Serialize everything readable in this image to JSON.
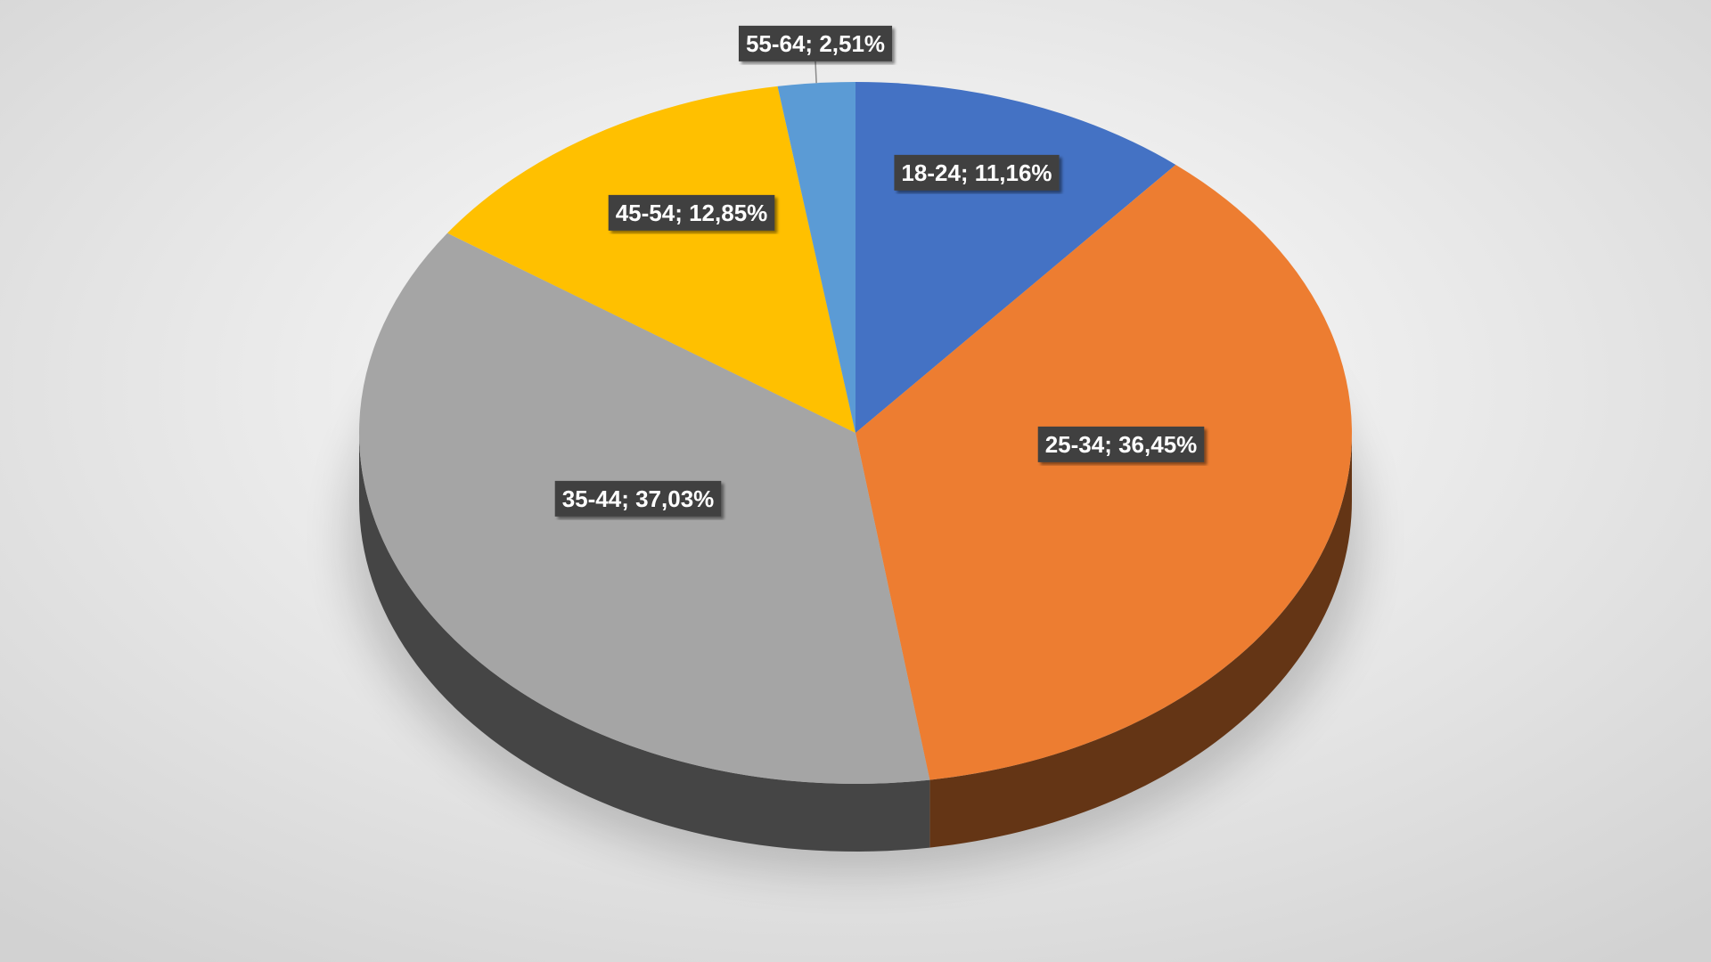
{
  "chart_data": {
    "type": "pie3d",
    "values": [
      11.16,
      36.45,
      37.03,
      12.85,
      2.51
    ],
    "value_labels": [
      "18-24; 11,16%",
      "25-34; 36,45%",
      "35-44; 37,03%",
      "45-54; 12,85%",
      "55-64; 2,51%"
    ],
    "colors": [
      "#4472c4",
      "#ed7d31",
      "#a5a5a5",
      "#ffc000",
      "#5b9bd5"
    ]
  }
}
